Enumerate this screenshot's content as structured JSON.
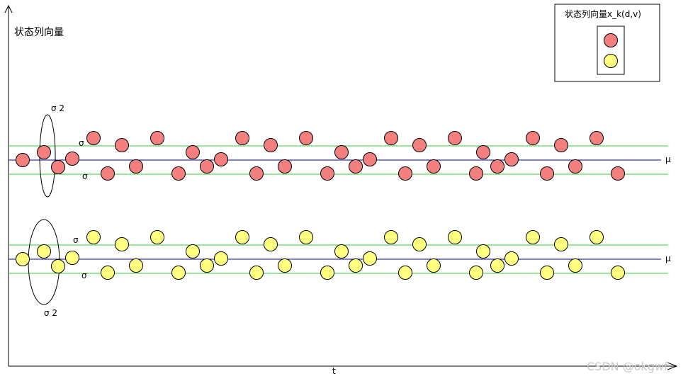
{
  "y_axis_label": "状态列向量",
  "x_axis_label": "t",
  "legend": {
    "title": "状态列向量x_k(d,v)",
    "items": [
      {
        "color": "#f47f7f"
      },
      {
        "color": "#ffff80"
      }
    ]
  },
  "mean_symbol": "μ",
  "sigma_symbol": "σ",
  "sigma2_label": "σ 2",
  "watermark": "CSDN @okgwf",
  "colors": {
    "red_point": "#f47f7f",
    "yellow_point": "#ffff80",
    "mean_line": "#0000aa",
    "sigma_line": "#33cc33"
  },
  "groups": [
    {
      "name": "red",
      "color": "#f47f7f"
    },
    {
      "name": "yellow",
      "color": "#ffff80"
    }
  ]
}
